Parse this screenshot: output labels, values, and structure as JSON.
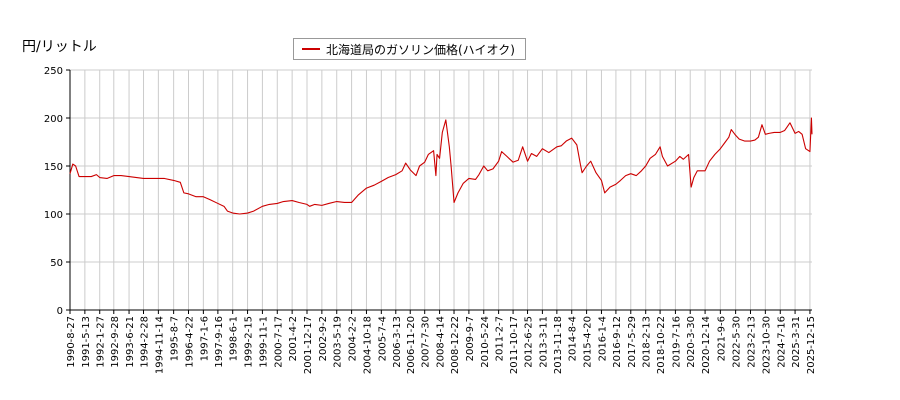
{
  "chart_data": {
    "type": "line",
    "ylabel": "円/リットル",
    "ylim": [
      0,
      250
    ],
    "yticks": [
      0,
      50,
      100,
      150,
      200,
      250
    ],
    "grid": true,
    "legend_position": "top-center",
    "series": [
      {
        "name": "北海道局のガソリン価格(ハイオク)",
        "color": "#cc0000",
        "points": [
          [
            "1990-08-27",
            142
          ],
          [
            "1990-10-15",
            152
          ],
          [
            "1990-12-03",
            150
          ],
          [
            "1991-02-01",
            139
          ],
          [
            "1991-05-13",
            139
          ],
          [
            "1991-09-02",
            139
          ],
          [
            "1991-12-01",
            141
          ],
          [
            "1992-01-27",
            138
          ],
          [
            "1992-06-01",
            137
          ],
          [
            "1992-09-28",
            140
          ],
          [
            "1993-02-01",
            140
          ],
          [
            "1993-06-21",
            139
          ],
          [
            "1993-11-01",
            138
          ],
          [
            "1994-02-28",
            137
          ],
          [
            "1994-07-01",
            137
          ],
          [
            "1994-11-14",
            137
          ],
          [
            "1995-03-01",
            137
          ],
          [
            "1995-08-07",
            135
          ],
          [
            "1995-12-01",
            133
          ],
          [
            "1996-02-01",
            122
          ],
          [
            "1996-04-22",
            121
          ],
          [
            "1996-09-01",
            118
          ],
          [
            "1997-01-06",
            118
          ],
          [
            "1997-05-01",
            115
          ],
          [
            "1997-09-16",
            111
          ],
          [
            "1998-01-01",
            108
          ],
          [
            "1998-03-01",
            103
          ],
          [
            "1998-06-01",
            101
          ],
          [
            "1998-10-01",
            100
          ],
          [
            "1999-02-15",
            101
          ],
          [
            "1999-06-01",
            103
          ],
          [
            "1999-11-01",
            108
          ],
          [
            "2000-03-01",
            110
          ],
          [
            "2000-07-17",
            111
          ],
          [
            "2000-11-01",
            113
          ],
          [
            "2001-04-02",
            114
          ],
          [
            "2001-08-01",
            112
          ],
          [
            "2001-12-17",
            110
          ],
          [
            "2002-02-01",
            108
          ],
          [
            "2002-05-01",
            110
          ],
          [
            "2002-09-02",
            109
          ],
          [
            "2003-01-01",
            111
          ],
          [
            "2003-05-19",
            113
          ],
          [
            "2003-10-01",
            112
          ],
          [
            "2004-02-02",
            112
          ],
          [
            "2004-06-01",
            120
          ],
          [
            "2004-10-18",
            127
          ],
          [
            "2005-03-01",
            130
          ],
          [
            "2005-07-04",
            134
          ],
          [
            "2005-11-01",
            138
          ],
          [
            "2006-03-13",
            141
          ],
          [
            "2006-07-01",
            145
          ],
          [
            "2006-09-01",
            153
          ],
          [
            "2006-11-20",
            146
          ],
          [
            "2007-03-01",
            140
          ],
          [
            "2007-05-01",
            150
          ],
          [
            "2007-07-30",
            154
          ],
          [
            "2007-10-01",
            162
          ],
          [
            "2008-01-01",
            166
          ],
          [
            "2008-02-10",
            140
          ],
          [
            "2008-03-01",
            162
          ],
          [
            "2008-04-14",
            158
          ],
          [
            "2008-06-01",
            185
          ],
          [
            "2008-08-01",
            198
          ],
          [
            "2008-10-01",
            170
          ],
          [
            "2008-11-01",
            150
          ],
          [
            "2008-12-22",
            112
          ],
          [
            "2009-03-01",
            122
          ],
          [
            "2009-06-01",
            132
          ],
          [
            "2009-09-07",
            137
          ],
          [
            "2010-01-01",
            136
          ],
          [
            "2010-03-01",
            141
          ],
          [
            "2010-05-24",
            150
          ],
          [
            "2010-08-01",
            145
          ],
          [
            "2010-11-01",
            147
          ],
          [
            "2011-02-07",
            155
          ],
          [
            "2011-04-01",
            165
          ],
          [
            "2011-07-01",
            160
          ],
          [
            "2011-10-17",
            154
          ],
          [
            "2012-01-15",
            156
          ],
          [
            "2012-04-01",
            170
          ],
          [
            "2012-06-25",
            155
          ],
          [
            "2012-09-01",
            163
          ],
          [
            "2012-12-01",
            160
          ],
          [
            "2013-03-11",
            168
          ],
          [
            "2013-07-01",
            164
          ],
          [
            "2013-11-18",
            170
          ],
          [
            "2014-02-01",
            171
          ],
          [
            "2014-05-01",
            176
          ],
          [
            "2014-08-04",
            179
          ],
          [
            "2014-11-01",
            172
          ],
          [
            "2015-01-01",
            152
          ],
          [
            "2015-02-01",
            143
          ],
          [
            "2015-04-20",
            150
          ],
          [
            "2015-07-01",
            155
          ],
          [
            "2015-10-01",
            143
          ],
          [
            "2016-01-04",
            135
          ],
          [
            "2016-03-01",
            122
          ],
          [
            "2016-06-01",
            128
          ],
          [
            "2016-09-12",
            131
          ],
          [
            "2016-12-01",
            135
          ],
          [
            "2017-03-01",
            140
          ],
          [
            "2017-05-29",
            142
          ],
          [
            "2017-09-01",
            140
          ],
          [
            "2017-12-01",
            145
          ],
          [
            "2018-02-13",
            150
          ],
          [
            "2018-05-01",
            158
          ],
          [
            "2018-08-01",
            162
          ],
          [
            "2018-10-22",
            170
          ],
          [
            "2018-12-01",
            160
          ],
          [
            "2019-03-01",
            150
          ],
          [
            "2019-07-16",
            155
          ],
          [
            "2019-10-01",
            160
          ],
          [
            "2019-12-01",
            157
          ],
          [
            "2020-03-01",
            162
          ],
          [
            "2020-04-15",
            128
          ],
          [
            "2020-06-01",
            138
          ],
          [
            "2020-08-01",
            145
          ],
          [
            "2020-12-14",
            145
          ],
          [
            "2021-03-01",
            155
          ],
          [
            "2021-06-01",
            162
          ],
          [
            "2021-09-06",
            168
          ],
          [
            "2021-12-01",
            175
          ],
          [
            "2022-02-01",
            180
          ],
          [
            "2022-03-15",
            188
          ],
          [
            "2022-05-30",
            182
          ],
          [
            "2022-08-01",
            178
          ],
          [
            "2022-11-01",
            176
          ],
          [
            "2023-02-13",
            176
          ],
          [
            "2023-05-01",
            177
          ],
          [
            "2023-07-01",
            180
          ],
          [
            "2023-09-01",
            193
          ],
          [
            "2023-10-30",
            183
          ],
          [
            "2024-01-01",
            184
          ],
          [
            "2024-04-01",
            185
          ],
          [
            "2024-07-16",
            185
          ],
          [
            "2024-10-01",
            187
          ],
          [
            "2025-01-01",
            195
          ],
          [
            "2025-03-31",
            184
          ],
          [
            "2025-06-01",
            186
          ],
          [
            "2025-08-01",
            183
          ],
          [
            "2025-10-01",
            168
          ],
          [
            "2025-12-15",
            165
          ],
          [
            "2026-01-10",
            200
          ],
          [
            "2026-01-20",
            183
          ]
        ]
      }
    ],
    "x_tick_labels": [
      "1990-8-27",
      "1991-5-13",
      "1992-1-27",
      "1992-9-28",
      "1993-6-21",
      "1994-2-28",
      "1994-11-14",
      "1995-8-7",
      "1996-4-22",
      "1997-1-6",
      "1997-9-16",
      "1998-6-1",
      "1999-2-15",
      "1999-11-1",
      "2000-7-17",
      "2001-4-2",
      "2001-12-17",
      "2002-9-2",
      "2003-5-19",
      "2004-2-2",
      "2004-10-18",
      "2005-7-4",
      "2006-3-13",
      "2006-11-20",
      "2007-7-30",
      "2008-4-14",
      "2008-12-22",
      "2009-9-7",
      "2010-5-24",
      "2011-2-7",
      "2011-10-17",
      "2012-6-25",
      "2013-3-11",
      "2013-11-18",
      "2014-8-4",
      "2015-4-20",
      "2016-1-4",
      "2016-9-12",
      "2017-5-29",
      "2018-2-13",
      "2018-10-22",
      "2019-7-16",
      "2020-3-30",
      "2020-12-14",
      "2021-9-6",
      "2022-5-30",
      "2023-2-13",
      "2023-10-30",
      "2024-7-16",
      "2025-3-31",
      "2025-12-15"
    ]
  }
}
